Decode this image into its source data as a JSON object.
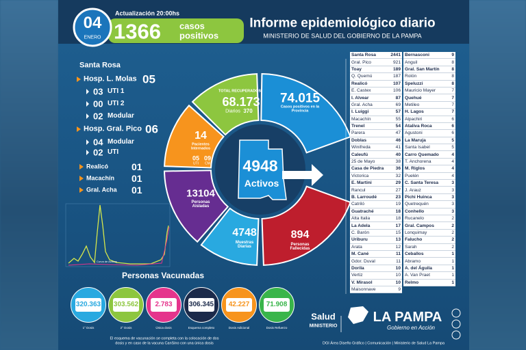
{
  "header": {
    "day": "04",
    "month": "ENERO",
    "update": "Actualización 20:00hs",
    "cases": "1366",
    "cases_word_1": "casos",
    "cases_word_2": "positivos",
    "title": "Informe epidemiológico diario",
    "subtitle": "MINISTERIO DE SALUD DEL GOBIERNO DE LA PAMPA"
  },
  "hospitals": {
    "city": "Santa Rosa",
    "items": [
      {
        "name": "Hosp. L. Molas",
        "value": "05",
        "units": [
          {
            "value": "03",
            "name": "UTI 1"
          },
          {
            "value": "00",
            "name": "UTI 2"
          },
          {
            "value": "02",
            "name": "Modular"
          }
        ]
      },
      {
        "name": "Hosp. Gral. Pico",
        "value": "06",
        "units": [
          {
            "value": "04",
            "name": "Modular"
          },
          {
            "value": "02",
            "name": "UTI"
          }
        ]
      }
    ],
    "localities": [
      {
        "name": "Realicó",
        "value": "01"
      },
      {
        "name": "Macachín",
        "value": "01"
      },
      {
        "name": "Gral. Acha",
        "value": "01"
      }
    ]
  },
  "curve": {
    "label": "Curva de Activos"
  },
  "ring": {
    "recovered": {
      "label": "TOTAL RECUPERADOS",
      "value": "68.173",
      "daily_label": "Diarios",
      "daily": "370"
    },
    "positives": {
      "value": "74.015",
      "label": "Casos positivos en la Provincia"
    },
    "hospitalized": {
      "value": "14",
      "label": "Pacientes Internados",
      "uti": "05",
      "uti_label": "UTI",
      "cm": "09",
      "cm_label": "CM"
    },
    "isolated": {
      "value": "13104",
      "label": "Personas Aisladas"
    },
    "tests": {
      "value": "4748",
      "label": "Muestras Diarias"
    },
    "deaths": {
      "value": "894",
      "label": "Personas Fallecidas"
    },
    "active": {
      "value": "4948",
      "label": "Activos"
    }
  },
  "table": {
    "columns": [
      [
        {
          "name": "Santa Rosa",
          "value": 2441
        },
        {
          "name": "Gral. Pico",
          "value": 921
        },
        {
          "name": "Toay",
          "value": 189
        },
        {
          "name": "Q. Quemú",
          "value": 187
        },
        {
          "name": "Realicó",
          "value": 107
        },
        {
          "name": "E. Castex",
          "value": 106
        },
        {
          "name": "I. Alvear",
          "value": 87
        },
        {
          "name": "Gral. Acha",
          "value": 69
        },
        {
          "name": "I. Luiggi",
          "value": 57
        },
        {
          "name": "Macachín",
          "value": 55
        },
        {
          "name": "Trenel",
          "value": 54
        },
        {
          "name": "Parera",
          "value": 47
        },
        {
          "name": "Doblas",
          "value": 46
        },
        {
          "name": "Winifreda",
          "value": 41
        },
        {
          "name": "Caleufú",
          "value": 40
        },
        {
          "name": "25 de Mayo",
          "value": 38
        },
        {
          "name": "Casa de Piedra",
          "value": 36
        },
        {
          "name": "Victorica",
          "value": 32
        },
        {
          "name": "E. Martini",
          "value": 29
        },
        {
          "name": "Rancul",
          "value": 27
        },
        {
          "name": "B. Larroudé",
          "value": 23
        },
        {
          "name": "Catriló",
          "value": 19
        },
        {
          "name": "Guatraché",
          "value": 18
        },
        {
          "name": "Alta Italia",
          "value": 18
        },
        {
          "name": "La Adela",
          "value": 17
        },
        {
          "name": "C. Barón",
          "value": 15
        },
        {
          "name": "Uriburu",
          "value": 13
        },
        {
          "name": "Arata",
          "value": 12
        },
        {
          "name": "M. Cané",
          "value": 11
        },
        {
          "name": "Gdor. Duval",
          "value": 11
        },
        {
          "name": "Dorila",
          "value": 10
        },
        {
          "name": "Vertiz",
          "value": 10
        },
        {
          "name": "V. Mirasol",
          "value": 10
        },
        {
          "name": "Maisonnave",
          "value": 9
        }
      ],
      [
        {
          "name": "Bernasconi",
          "value": 9
        },
        {
          "name": "Anguil",
          "value": 8
        },
        {
          "name": "Gral. San Martín",
          "value": 8
        },
        {
          "name": "Rolón",
          "value": 8
        },
        {
          "name": "Speluzzi",
          "value": 8
        },
        {
          "name": "Mauricio Mayer",
          "value": 7
        },
        {
          "name": "Quehué",
          "value": 7
        },
        {
          "name": "Metileo",
          "value": 7
        },
        {
          "name": "H. Lagos",
          "value": 7
        },
        {
          "name": "Alpachiri",
          "value": 6
        },
        {
          "name": "Ataliva Roca",
          "value": 6
        },
        {
          "name": "Agustoni",
          "value": 6
        },
        {
          "name": "La Maruja",
          "value": 5
        },
        {
          "name": "Santa Isabel",
          "value": 5
        },
        {
          "name": "Carro Quemado",
          "value": 4
        },
        {
          "name": "T. Anchorena",
          "value": 4
        },
        {
          "name": "M. Riglos",
          "value": 4
        },
        {
          "name": "Puelén",
          "value": 4
        },
        {
          "name": "C. Santa Teresa",
          "value": 3
        },
        {
          "name": "J. Arauz",
          "value": 3
        },
        {
          "name": "Pichi Huinca",
          "value": 3
        },
        {
          "name": "Quetrequén",
          "value": 3
        },
        {
          "name": "Conhello",
          "value": 3
        },
        {
          "name": "Rucanelo",
          "value": 2
        },
        {
          "name": "Gral. Campos",
          "value": 2
        },
        {
          "name": "Lonquimay",
          "value": 2
        },
        {
          "name": "Falucho",
          "value": 2
        },
        {
          "name": "Sarah",
          "value": 2
        },
        {
          "name": "Ceballos",
          "value": 1
        },
        {
          "name": "Abramo",
          "value": 1
        },
        {
          "name": "A. del Águila",
          "value": 1
        },
        {
          "name": "A. Van Praet",
          "value": 1
        },
        {
          "name": "Relmo",
          "value": 1
        }
      ]
    ]
  },
  "vaccines": {
    "title": "Personas Vacunadas",
    "items": [
      {
        "value": "320.363",
        "label": "1° Dosis"
      },
      {
        "value": "303.562",
        "label": "2° Dosis"
      },
      {
        "value": "2.783",
        "label": "Única dosis"
      },
      {
        "value": "306.345",
        "label": "Esquema completo"
      },
      {
        "value": "42.227",
        "label": "Dosis Adicional"
      },
      {
        "value": "71.908",
        "label": "Dosis Refuerzo"
      }
    ],
    "note": "El esquema de vacunación se completa con la colocación de dos dosis y en caso de la vacuna CanSino con una única dosis"
  },
  "footer": {
    "salud": "Salud",
    "ministerio": "MINISTERIO",
    "brand": "LA PAMPA",
    "brand_sub": "Gobierno en Acción",
    "credits": "DGI Área Diseño Gráfico | Comunicación | Ministerio de Salud La Pampa"
  }
}
